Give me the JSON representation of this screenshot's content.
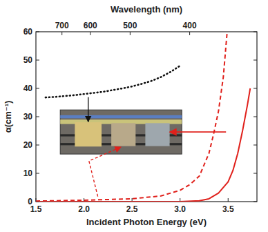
{
  "chart_data": {
    "type": "line",
    "xlabel": "Incident Photon Energy (eV)",
    "ylabel": "α(cm⁻¹)",
    "x2label": "Wavelength (nm)",
    "xlim": [
      1.5,
      3.8
    ],
    "ylim": [
      0,
      60
    ],
    "xticks": [
      1.5,
      {
        "value": 2,
        "label": "2.0"
      },
      2.5,
      {
        "value": 3,
        "label": "3.0"
      },
      3.5
    ],
    "yticks": [
      0,
      10,
      20,
      30,
      40,
      50,
      60
    ],
    "x2ticks": [
      {
        "value": 1.771,
        "label": "700"
      },
      {
        "value": 2.066,
        "label": "600"
      },
      {
        "value": 2.48,
        "label": "500"
      },
      {
        "value": 3.1,
        "label": "400"
      }
    ],
    "grid": false,
    "series": [
      {
        "color": "#111111",
        "line_style": "dotted",
        "x": [
          1.6,
          1.7,
          1.8,
          1.9,
          2.0,
          2.1,
          2.2,
          2.3,
          2.4,
          2.5,
          2.6,
          2.7,
          2.8,
          2.9,
          3.0
        ],
        "values": [
          36.8,
          37.0,
          37.3,
          37.6,
          38.0,
          38.4,
          38.8,
          39.4,
          40.0,
          40.7,
          41.6,
          42.6,
          44.0,
          45.8,
          48.0
        ]
      },
      {
        "color": "#e0201b",
        "line_style": "dashed",
        "x": [
          1.5,
          2.0,
          2.5,
          2.8,
          3.0,
          3.1,
          3.2,
          3.3,
          3.35,
          3.4,
          3.45,
          3.49
        ],
        "values": [
          0.2,
          0.5,
          1.0,
          2.0,
          4.0,
          6.0,
          9.0,
          17.0,
          24.0,
          32.0,
          44.0,
          60.0
        ]
      },
      {
        "color": "#e0201b",
        "line_style": "solid",
        "x": [
          1.5,
          3.0,
          3.2,
          3.3,
          3.4,
          3.5,
          3.55,
          3.6,
          3.65,
          3.7,
          3.73
        ],
        "values": [
          0.0,
          0.0,
          0.3,
          1.0,
          3.0,
          7.0,
          11.0,
          17.0,
          25.0,
          34.0,
          40.0
        ]
      }
    ]
  }
}
